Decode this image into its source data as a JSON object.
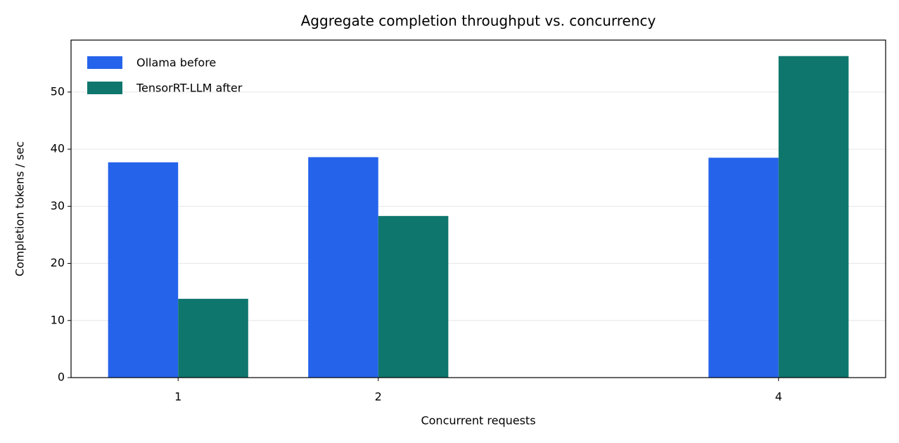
{
  "chart_data": {
    "type": "bar",
    "title": "Aggregate completion throughput vs. concurrency",
    "x_label": "Concurrent requests",
    "y_label": "Completion tokens / sec",
    "x": [
      1,
      2,
      4
    ],
    "series": [
      {
        "name": "Ollama before",
        "color": "#2563eb",
        "values": [
          37.7,
          38.6,
          38.5
        ]
      },
      {
        "name": "TensorRT-LLM after",
        "color": "#0f766e",
        "values": [
          13.8,
          28.3,
          56.3
        ]
      }
    ],
    "xlim": [
      0.465,
      4.535
    ],
    "xticks": [
      1,
      2,
      4
    ],
    "ylim": [
      0,
      59.1
    ],
    "yticks": [
      0,
      10,
      20,
      30,
      40,
      50
    ],
    "grid": true,
    "legend": "upper-left"
  }
}
